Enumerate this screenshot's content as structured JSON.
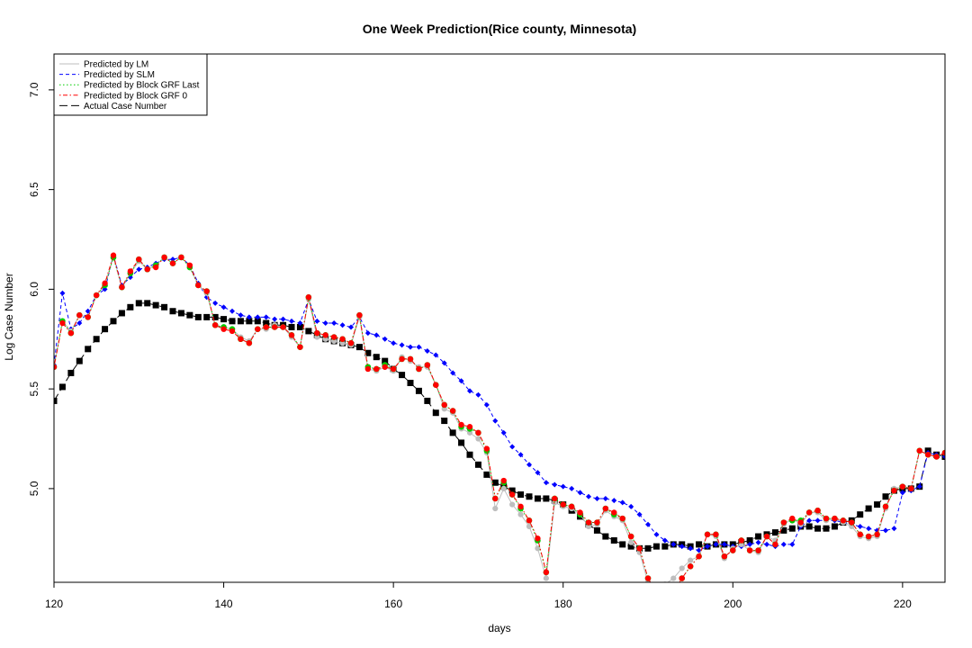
{
  "chart_data": {
    "type": "line",
    "title": "One Week Prediction(Rice county, Minnesota)",
    "xlabel": "days",
    "ylabel": "Log Case Number",
    "xlim": [
      120,
      225
    ],
    "ylim": [
      4.53,
      7.18
    ],
    "x_ticks": [
      120,
      140,
      160,
      180,
      200,
      220
    ],
    "y_ticks": [
      5.0,
      5.5,
      6.0,
      6.5,
      7.0
    ],
    "legend_position": "top-left",
    "x": [
      120,
      121,
      122,
      123,
      124,
      125,
      126,
      127,
      128,
      129,
      130,
      131,
      132,
      133,
      134,
      135,
      136,
      137,
      138,
      139,
      140,
      141,
      142,
      143,
      144,
      145,
      146,
      147,
      148,
      149,
      150,
      151,
      152,
      153,
      154,
      155,
      156,
      157,
      158,
      159,
      160,
      161,
      162,
      163,
      164,
      165,
      166,
      167,
      168,
      169,
      170,
      171,
      172,
      173,
      174,
      175,
      176,
      177,
      178,
      179,
      180,
      181,
      182,
      183,
      184,
      185,
      186,
      187,
      188,
      189,
      190,
      191,
      192,
      193,
      194,
      195,
      196,
      197,
      198,
      199,
      200,
      201,
      202,
      203,
      204,
      205,
      206,
      207,
      208,
      209,
      210,
      211,
      212,
      213,
      214,
      215,
      216,
      217,
      218,
      219,
      220,
      221,
      222,
      223,
      224,
      225
    ],
    "series": [
      {
        "name": "Predicted by LM",
        "color": "#bebebe",
        "line_style": "solid",
        "marker": "circle",
        "values": [
          5.61,
          5.84,
          5.79,
          5.87,
          5.86,
          5.97,
          6.02,
          6.16,
          6.01,
          6.08,
          6.14,
          6.1,
          6.12,
          6.16,
          6.13,
          6.16,
          6.11,
          6.02,
          5.98,
          5.82,
          5.81,
          5.8,
          5.76,
          5.74,
          5.8,
          5.8,
          5.82,
          5.81,
          5.76,
          5.71,
          5.95,
          5.76,
          5.75,
          5.74,
          5.73,
          5.72,
          5.86,
          5.6,
          5.59,
          5.61,
          5.59,
          5.66,
          5.64,
          5.61,
          5.61,
          5.52,
          5.4,
          5.38,
          5.3,
          5.28,
          5.25,
          5.18,
          4.9,
          5.0,
          4.92,
          4.87,
          4.81,
          4.7,
          4.55,
          4.93,
          4.91,
          4.9,
          4.87,
          4.81,
          4.82,
          4.89,
          4.86,
          4.84,
          4.73,
          4.68,
          4.53,
          4.42,
          4.52,
          4.55,
          4.6,
          4.64,
          4.66,
          4.77,
          4.76,
          4.65,
          4.7,
          4.72,
          4.69,
          4.68,
          4.76,
          4.74,
          4.82,
          4.85,
          4.82,
          4.88,
          4.88,
          4.84,
          4.85,
          4.83,
          4.81,
          4.76,
          4.75,
          4.76,
          4.9,
          5.0,
          5.01,
          5.0,
          5.19,
          5.17,
          5.16,
          5.18
        ]
      },
      {
        "name": "Predicted by SLM",
        "color": "#0000ff",
        "line_style": "dashed",
        "marker": "diamond",
        "values": [
          5.62,
          5.98,
          5.8,
          5.83,
          5.89,
          5.97,
          6.0,
          6.17,
          6.02,
          6.06,
          6.1,
          6.11,
          6.13,
          6.15,
          6.15,
          6.16,
          6.12,
          6.03,
          5.96,
          5.93,
          5.91,
          5.89,
          5.87,
          5.86,
          5.86,
          5.86,
          5.85,
          5.85,
          5.84,
          5.83,
          5.95,
          5.84,
          5.83,
          5.83,
          5.82,
          5.81,
          5.86,
          5.78,
          5.77,
          5.75,
          5.73,
          5.72,
          5.71,
          5.71,
          5.69,
          5.67,
          5.63,
          5.58,
          5.54,
          5.49,
          5.47,
          5.42,
          5.34,
          5.28,
          5.21,
          5.17,
          5.12,
          5.08,
          5.03,
          5.02,
          5.01,
          5.0,
          4.98,
          4.96,
          4.95,
          4.95,
          4.94,
          4.93,
          4.91,
          4.87,
          4.82,
          4.77,
          4.74,
          4.72,
          4.71,
          4.7,
          4.69,
          4.71,
          4.72,
          4.72,
          4.71,
          4.71,
          4.72,
          4.73,
          4.72,
          4.71,
          4.72,
          4.72,
          4.81,
          4.84,
          4.84,
          4.84,
          4.84,
          4.83,
          4.82,
          4.81,
          4.8,
          4.79,
          4.79,
          4.8,
          4.98,
          4.99,
          5.01,
          5.18,
          5.17,
          5.16
        ]
      },
      {
        "name": "Predicted by Block GRF Last",
        "color": "#00cc00",
        "line_style": "dotted",
        "marker": "circle",
        "values": [
          5.61,
          5.84,
          5.78,
          5.87,
          5.86,
          5.97,
          6.02,
          6.16,
          6.01,
          6.08,
          6.15,
          6.1,
          6.12,
          6.16,
          6.13,
          6.16,
          6.11,
          6.02,
          5.99,
          5.82,
          5.81,
          5.8,
          5.75,
          5.73,
          5.8,
          5.81,
          5.81,
          5.81,
          5.77,
          5.71,
          5.96,
          5.78,
          5.77,
          5.76,
          5.75,
          5.73,
          5.87,
          5.61,
          5.6,
          5.62,
          5.6,
          5.65,
          5.65,
          5.6,
          5.62,
          5.52,
          5.42,
          5.39,
          5.31,
          5.3,
          5.28,
          5.19,
          4.95,
          5.03,
          4.97,
          4.9,
          4.84,
          4.74,
          4.58,
          4.95,
          4.92,
          4.91,
          4.87,
          4.83,
          4.83,
          4.9,
          4.87,
          4.85,
          4.76,
          4.7,
          4.55,
          4.48,
          4.47,
          4.48,
          4.55,
          4.61,
          4.66,
          4.77,
          4.77,
          4.66,
          4.69,
          4.74,
          4.69,
          4.69,
          4.76,
          4.72,
          4.83,
          4.84,
          4.84,
          4.88,
          4.89,
          4.85,
          4.85,
          4.84,
          4.83,
          4.77,
          4.76,
          4.77,
          4.91,
          4.99,
          5.01,
          5.0,
          5.19,
          5.17,
          5.16,
          5.18
        ]
      },
      {
        "name": "Predicted by Block GRF 0",
        "color": "#ff0000",
        "line_style": "dotdash",
        "marker": "circle",
        "values": [
          5.61,
          5.83,
          5.78,
          5.87,
          5.86,
          5.97,
          6.03,
          6.17,
          6.01,
          6.09,
          6.15,
          6.1,
          6.11,
          6.16,
          6.13,
          6.16,
          6.12,
          6.02,
          5.99,
          5.82,
          5.8,
          5.79,
          5.75,
          5.73,
          5.8,
          5.81,
          5.81,
          5.81,
          5.77,
          5.71,
          5.96,
          5.78,
          5.77,
          5.76,
          5.75,
          5.73,
          5.87,
          5.6,
          5.6,
          5.61,
          5.6,
          5.65,
          5.65,
          5.6,
          5.62,
          5.52,
          5.42,
          5.39,
          5.32,
          5.31,
          5.28,
          5.2,
          4.95,
          5.04,
          4.97,
          4.91,
          4.84,
          4.75,
          4.58,
          4.95,
          4.92,
          4.91,
          4.88,
          4.83,
          4.83,
          4.9,
          4.88,
          4.85,
          4.76,
          4.7,
          4.55,
          4.48,
          4.47,
          4.48,
          4.55,
          4.61,
          4.66,
          4.77,
          4.77,
          4.66,
          4.69,
          4.74,
          4.69,
          4.69,
          4.76,
          4.72,
          4.83,
          4.85,
          4.83,
          4.88,
          4.89,
          4.85,
          4.85,
          4.84,
          4.83,
          4.77,
          4.76,
          4.77,
          4.91,
          4.99,
          5.01,
          5.0,
          5.19,
          5.17,
          5.16,
          5.18
        ]
      },
      {
        "name": "Actual Case Number",
        "color": "#000000",
        "line_style": "longdash",
        "marker": "square",
        "values": [
          5.44,
          5.51,
          5.58,
          5.64,
          5.7,
          5.75,
          5.8,
          5.84,
          5.88,
          5.91,
          5.93,
          5.93,
          5.92,
          5.91,
          5.89,
          5.88,
          5.87,
          5.86,
          5.86,
          5.86,
          5.85,
          5.84,
          5.84,
          5.84,
          5.84,
          5.83,
          5.82,
          5.82,
          5.81,
          5.81,
          5.79,
          5.77,
          5.75,
          5.74,
          5.73,
          5.72,
          5.71,
          5.68,
          5.66,
          5.64,
          5.6,
          5.57,
          5.53,
          5.49,
          5.44,
          5.38,
          5.34,
          5.28,
          5.23,
          5.17,
          5.12,
          5.07,
          5.03,
          5.01,
          4.99,
          4.97,
          4.96,
          4.95,
          4.95,
          4.94,
          4.92,
          4.89,
          4.86,
          4.82,
          4.79,
          4.76,
          4.74,
          4.72,
          4.71,
          4.7,
          4.7,
          4.71,
          4.71,
          4.72,
          4.72,
          4.71,
          4.72,
          4.71,
          4.72,
          4.72,
          4.72,
          4.73,
          4.74,
          4.76,
          4.77,
          4.78,
          4.79,
          4.8,
          4.81,
          4.81,
          4.8,
          4.8,
          4.81,
          4.83,
          4.84,
          4.87,
          4.9,
          4.92,
          4.96,
          4.99,
          5.0,
          5.0,
          5.01,
          5.19,
          5.17,
          5.16
        ]
      }
    ]
  }
}
